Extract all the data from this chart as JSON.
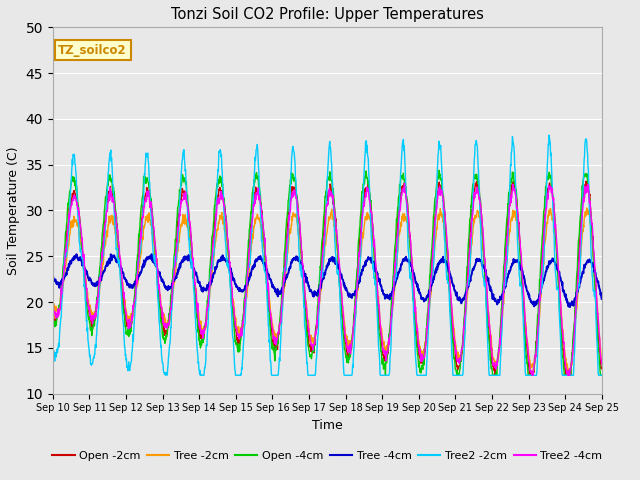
{
  "title": "Tonzi Soil CO2 Profile: Upper Temperatures",
  "xlabel": "Time",
  "ylabel": "Soil Temperature (C)",
  "ylim": [
    10,
    50
  ],
  "yticks": [
    10,
    15,
    20,
    25,
    30,
    35,
    40,
    45,
    50
  ],
  "fig_bg_color": "#e8e8e8",
  "plot_bg_color": "#e8e8e8",
  "series_colors": {
    "Open -2cm": "#cc0000",
    "Tree -2cm": "#ff9900",
    "Open -4cm": "#00cc00",
    "Tree -4cm": "#0000cc",
    "Tree2 -2cm": "#00ccff",
    "Tree2 -4cm": "#ff00ff"
  },
  "label_box_text": "TZ_soilco2",
  "label_box_facecolor": "#ffffcc",
  "label_box_edgecolor": "#cc8800",
  "n_days": 15,
  "start_day": 10,
  "figsize": [
    6.4,
    4.8
  ],
  "dpi": 100
}
